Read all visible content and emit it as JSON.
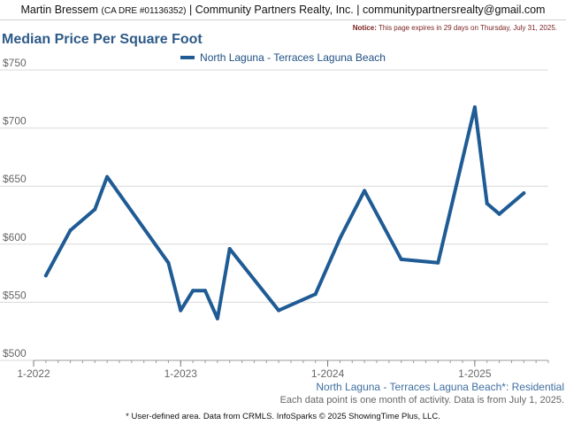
{
  "header": {
    "agent": "Martin Bressem",
    "dre": "(CA DRE #01136352)",
    "company": "Community Partners Realty, Inc.",
    "email": "communitypartnersrealty@gmail.com"
  },
  "notice": {
    "label": "Notice:",
    "text": "This page expires in 29 days on Thursday, July 31, 2025."
  },
  "caption": "North Laguna - Terraces Laguna Beach*: Residential",
  "source": "Each data point is one month of activity. Data is from July 1, 2025.",
  "footer": "* User-defined area. Data from CRMLS. InfoSparks © 2025 ShowingTime Plus, LLC.",
  "chart_data": {
    "type": "line",
    "title": "Median Price Per Square Foot",
    "xlabel": "",
    "ylabel": "",
    "ylim": [
      500,
      750
    ],
    "yticks": [
      {
        "value": 500,
        "label": "$500"
      },
      {
        "value": 550,
        "label": "$550"
      },
      {
        "value": 600,
        "label": "$600"
      },
      {
        "value": 650,
        "label": "$650"
      },
      {
        "value": 700,
        "label": "$700"
      },
      {
        "value": 750,
        "label": "$750"
      }
    ],
    "xlim": [
      "2022-01",
      "2025-07"
    ],
    "xticks": [
      {
        "value": "2022-01",
        "label": "1-2022"
      },
      {
        "value": "2023-01",
        "label": "1-2023"
      },
      {
        "value": "2024-01",
        "label": "1-2024"
      },
      {
        "value": "2025-01",
        "label": "1-2025"
      }
    ],
    "grid": "horizontal",
    "legend": "top-center",
    "color": "#1f5b94",
    "series": [
      {
        "name": "North Laguna - Terraces Laguna Beach",
        "x": [
          "2022-02",
          "2022-04",
          "2022-06",
          "2022-07",
          "2022-12",
          "2023-01",
          "2023-02",
          "2023-03",
          "2023-04",
          "2023-05",
          "2023-09",
          "2023-12",
          "2024-02",
          "2024-04",
          "2024-07",
          "2024-10",
          "2025-01",
          "2025-02",
          "2025-03",
          "2025-05"
        ],
        "y": [
          573,
          612,
          630,
          658,
          584,
          543,
          560,
          560,
          536,
          596,
          543,
          557,
          605,
          646,
          587,
          584,
          718,
          635,
          626,
          644
        ]
      }
    ]
  }
}
